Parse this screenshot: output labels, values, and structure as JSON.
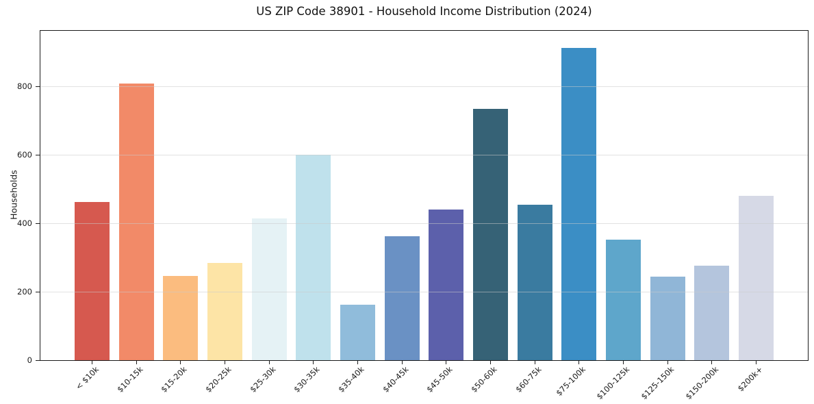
{
  "chart_data": {
    "type": "bar",
    "title": "US ZIP Code 38901 - Household Income Distribution (2024)",
    "xlabel": "",
    "ylabel": "Households",
    "categories": [
      "< $10k",
      "$10-15k",
      "$15-20k",
      "$20-25k",
      "$25-30k",
      "$30-35k",
      "$35-40k",
      "$40-45k",
      "$45-50k",
      "$50-60k",
      "$60-75k",
      "$75-100k",
      "$100-125k",
      "$125-150k",
      "$150-200k",
      "$200k+"
    ],
    "values": [
      462,
      808,
      246,
      285,
      415,
      600,
      162,
      362,
      440,
      734,
      455,
      913,
      353,
      244,
      277,
      480
    ],
    "bar_colors": [
      "#d6594f",
      "#f28a68",
      "#fbbc7f",
      "#fde4a6",
      "#e5f2f5",
      "#bfe1ec",
      "#90bcdb",
      "#6a91c4",
      "#5c60ab",
      "#366276",
      "#3a7ba0",
      "#3b8ec5",
      "#5ea6cb",
      "#90b6d7",
      "#b4c5dd",
      "#d6d9e6"
    ],
    "yticks": [
      "0",
      "200",
      "400",
      "600",
      "800"
    ],
    "ylim": [
      0,
      962
    ],
    "grid": "horizontal",
    "legend": "none",
    "plot_background": "#ffffff",
    "grid_color": "#e6e6e6",
    "spine_color": "#1a1a1a",
    "text_color": "#1a1a1a"
  }
}
